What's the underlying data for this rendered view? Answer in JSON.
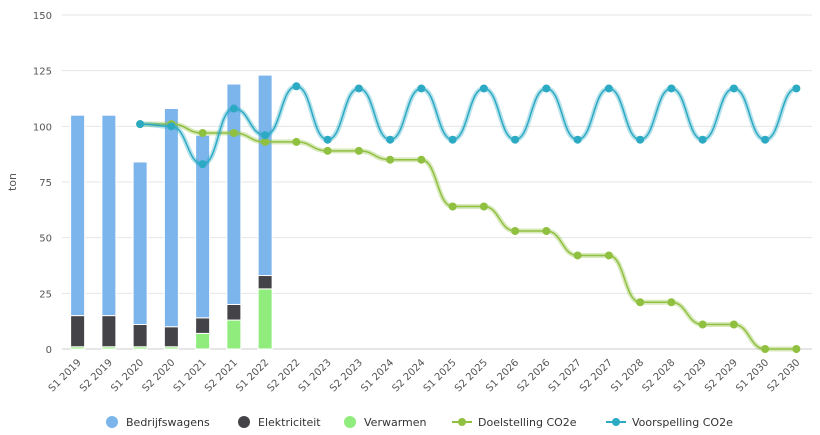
{
  "chart_data": {
    "type": "bar",
    "categories": [
      "S1 2019",
      "S2 2019",
      "S1 2020",
      "S2 2020",
      "S1 2021",
      "S2 2021",
      "S1 2022",
      "S2 2022",
      "S1 2023",
      "S2 2023",
      "S1 2024",
      "S2 2024",
      "S1 2025",
      "S2 2025",
      "S1 2026",
      "S2 2026",
      "S1 2027",
      "S2 2027",
      "S1 2028",
      "S2 2028",
      "S1 2029",
      "S2 2029",
      "S1 2030",
      "S2 2030"
    ],
    "ylabel": "ton",
    "xlabel": "",
    "ylim": [
      0,
      150
    ],
    "yticks": [
      0,
      25,
      50,
      75,
      100,
      125,
      150
    ],
    "grid": true,
    "legend_position": "bottom",
    "bar_series": [
      {
        "name": "Bedrijfswagens",
        "color": "#7cb5ec",
        "values": [
          90,
          90,
          73,
          98,
          82,
          99,
          90,
          null,
          null,
          null,
          null,
          null,
          null,
          null,
          null,
          null,
          null,
          null,
          null,
          null,
          null,
          null,
          null,
          null
        ]
      },
      {
        "name": "Elektriciteit",
        "color": "#434348",
        "values": [
          14,
          14,
          10,
          9,
          7,
          7,
          6,
          null,
          null,
          null,
          null,
          null,
          null,
          null,
          null,
          null,
          null,
          null,
          null,
          null,
          null,
          null,
          null,
          null
        ]
      },
      {
        "name": "Verwarmen",
        "color": "#90ed7d",
        "values": [
          1,
          1,
          1,
          1,
          7,
          13,
          27,
          null,
          null,
          null,
          null,
          null,
          null,
          null,
          null,
          null,
          null,
          null,
          null,
          null,
          null,
          null,
          null,
          null
        ]
      }
    ],
    "line_series": [
      {
        "name": "Doelstelling CO2e",
        "color": "#90c040",
        "values": [
          null,
          null,
          101,
          101,
          97,
          97,
          93,
          93,
          89,
          89,
          85,
          85,
          64,
          64,
          53,
          53,
          42,
          42,
          21,
          21,
          11,
          11,
          0,
          0
        ]
      },
      {
        "name": "Voorspelling CO2e",
        "color": "#2caac4",
        "values": [
          null,
          null,
          101,
          100,
          83,
          108,
          96,
          118,
          94,
          117,
          94,
          117,
          94,
          117,
          94,
          117,
          94,
          117,
          94,
          117,
          94,
          117,
          94,
          117
        ]
      }
    ]
  }
}
